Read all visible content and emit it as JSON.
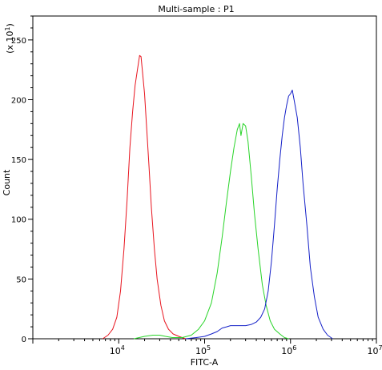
{
  "chart_data": {
    "type": "line",
    "title": "Multi-sample : P1",
    "xlabel": "FITC-A",
    "ylabel": "Count",
    "y_multiplier_label": "(x 10^1)",
    "x_scale": "log",
    "xlim": [
      1000,
      10000000
    ],
    "ylim": [
      0,
      270
    ],
    "y_ticks": [
      0,
      50,
      100,
      150,
      200,
      250
    ],
    "x_tick_labels": [
      {
        "value": 10000,
        "base": "10",
        "exp": "4"
      },
      {
        "value": 100000,
        "base": "10",
        "exp": "5"
      },
      {
        "value": 1000000,
        "base": "10",
        "exp": "6"
      },
      {
        "value": 10000000,
        "base": "10",
        "exp": "7"
      }
    ],
    "grid": false,
    "series": [
      {
        "color": "#e8141e",
        "points": [
          [
            6500,
            0
          ],
          [
            7500,
            3
          ],
          [
            8500,
            8
          ],
          [
            9500,
            18
          ],
          [
            10500,
            40
          ],
          [
            11500,
            75
          ],
          [
            12500,
            115
          ],
          [
            13500,
            160
          ],
          [
            14500,
            190
          ],
          [
            15500,
            212
          ],
          [
            16500,
            225
          ],
          [
            17500,
            237
          ],
          [
            18200,
            236
          ],
          [
            19000,
            222
          ],
          [
            20000,
            205
          ],
          [
            21000,
            180
          ],
          [
            22500,
            145
          ],
          [
            24000,
            110
          ],
          [
            26000,
            75
          ],
          [
            28000,
            50
          ],
          [
            31000,
            28
          ],
          [
            34000,
            15
          ],
          [
            38000,
            8
          ],
          [
            43000,
            4
          ],
          [
            50000,
            2
          ],
          [
            60000,
            0
          ]
        ]
      },
      {
        "color": "#28d428",
        "points": [
          [
            15000,
            0
          ],
          [
            20000,
            2
          ],
          [
            25000,
            3
          ],
          [
            30000,
            3
          ],
          [
            35000,
            2
          ],
          [
            42000,
            1
          ],
          [
            55000,
            1
          ],
          [
            70000,
            3
          ],
          [
            85000,
            8
          ],
          [
            100000,
            15
          ],
          [
            120000,
            30
          ],
          [
            140000,
            55
          ],
          [
            160000,
            85
          ],
          [
            180000,
            115
          ],
          [
            200000,
            140
          ],
          [
            220000,
            160
          ],
          [
            240000,
            175
          ],
          [
            255000,
            180
          ],
          [
            265000,
            170
          ],
          [
            280000,
            180
          ],
          [
            300000,
            178
          ],
          [
            320000,
            165
          ],
          [
            350000,
            135
          ],
          [
            380000,
            105
          ],
          [
            420000,
            75
          ],
          [
            470000,
            45
          ],
          [
            520000,
            28
          ],
          [
            580000,
            15
          ],
          [
            650000,
            8
          ],
          [
            750000,
            4
          ],
          [
            850000,
            1
          ],
          [
            950000,
            0
          ]
        ]
      },
      {
        "color": "#1420c8",
        "points": [
          [
            60000,
            0
          ],
          [
            80000,
            1
          ],
          [
            100000,
            2
          ],
          [
            120000,
            4
          ],
          [
            140000,
            6
          ],
          [
            160000,
            9
          ],
          [
            180000,
            10
          ],
          [
            200000,
            11
          ],
          [
            250000,
            11
          ],
          [
            300000,
            11
          ],
          [
            350000,
            12
          ],
          [
            400000,
            14
          ],
          [
            450000,
            18
          ],
          [
            500000,
            25
          ],
          [
            550000,
            40
          ],
          [
            600000,
            65
          ],
          [
            650000,
            95
          ],
          [
            700000,
            125
          ],
          [
            750000,
            150
          ],
          [
            800000,
            170
          ],
          [
            850000,
            185
          ],
          [
            900000,
            195
          ],
          [
            950000,
            203
          ],
          [
            1000000,
            205
          ],
          [
            1050000,
            208
          ],
          [
            1100000,
            200
          ],
          [
            1200000,
            185
          ],
          [
            1300000,
            160
          ],
          [
            1400000,
            130
          ],
          [
            1550000,
            95
          ],
          [
            1700000,
            60
          ],
          [
            1900000,
            35
          ],
          [
            2100000,
            18
          ],
          [
            2400000,
            8
          ],
          [
            2700000,
            3
          ],
          [
            3100000,
            0
          ]
        ]
      }
    ]
  }
}
